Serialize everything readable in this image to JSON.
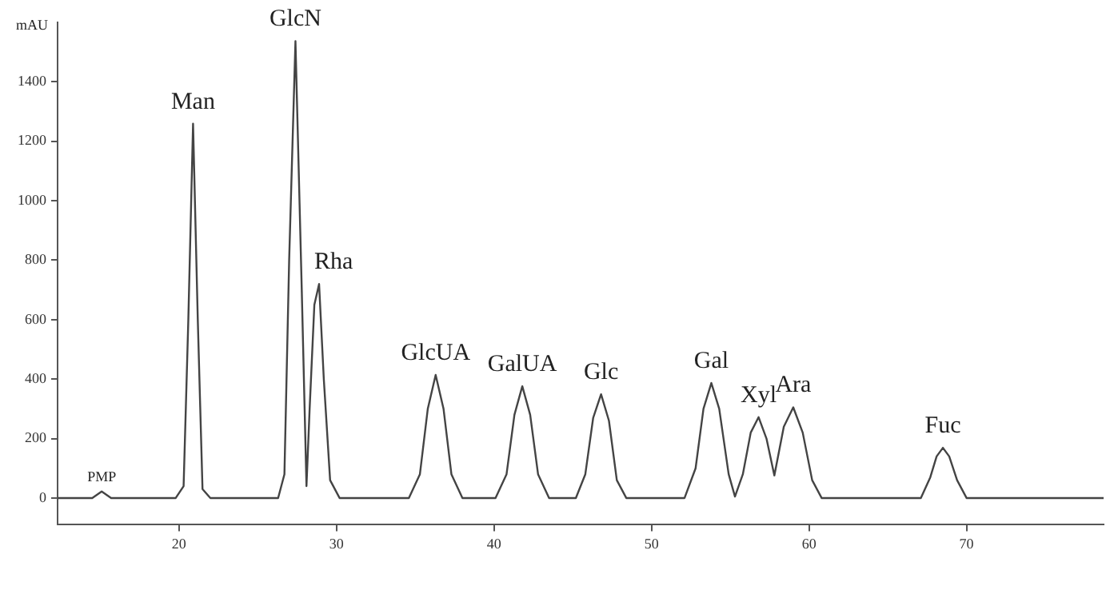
{
  "chart_data": {
    "type": "line",
    "ylabel": "mAU",
    "x": [
      12.3,
      14.5,
      15.1,
      15.7,
      19.8,
      20.3,
      20.6,
      20.9,
      21.2,
      21.5,
      22,
      26.3,
      26.7,
      27.0,
      27.4,
      27.8,
      28.1,
      28.3,
      28.6,
      28.9,
      29.2,
      29.6,
      30.2,
      34.6,
      35.3,
      35.8,
      36.3,
      36.8,
      37.3,
      38,
      40.1,
      40.8,
      41.3,
      41.8,
      42.3,
      42.8,
      43.5,
      45.2,
      45.8,
      46.3,
      46.8,
      47.3,
      47.8,
      48.4,
      52.1,
      52.8,
      53.3,
      53.8,
      54.3,
      54.9,
      55.3,
      55.8,
      56.3,
      56.8,
      57.3,
      57.8,
      58.4,
      59.0,
      59.6,
      60.2,
      60.8,
      67.1,
      67.7,
      68.1,
      68.5,
      68.9,
      69.4,
      70,
      78.7
    ],
    "series": [
      {
        "color": "#444444",
        "values": [
          0,
          0,
          22,
          0,
          0,
          40,
          600,
          1259,
          600,
          30,
          0,
          0,
          80,
          800,
          1537,
          700,
          40,
          300,
          650,
          720,
          400,
          60,
          0,
          0,
          80,
          300,
          414,
          300,
          80,
          0,
          0,
          80,
          280,
          376,
          280,
          80,
          0,
          0,
          80,
          270,
          349,
          260,
          60,
          0,
          0,
          100,
          300,
          387,
          300,
          80,
          5,
          80,
          220,
          272,
          200,
          76,
          240,
          305,
          220,
          60,
          0,
          0,
          70,
          140,
          169,
          140,
          60,
          0,
          0
        ]
      }
    ],
    "xlim": [
      12.3,
      78.7
    ],
    "xticks": [
      20,
      30,
      40,
      50,
      60,
      70
    ],
    "ylim": [
      -90,
      1600
    ],
    "yticks": [
      0,
      200,
      400,
      600,
      800,
      1000,
      1200,
      1400
    ],
    "grid": false,
    "legend": false,
    "marker": "none",
    "line_style": "solid",
    "annotations": [
      {
        "text": "PMP",
        "x": 15.1,
        "y": 22
      },
      {
        "text": "Man",
        "x": 20.9,
        "y": 1259
      },
      {
        "text": "GlcN",
        "x": 27.4,
        "y": 1537
      },
      {
        "text": "Rha",
        "x": 28.9,
        "y": 720
      },
      {
        "text": "GlcUA",
        "x": 36.3,
        "y": 414
      },
      {
        "text": "GalUA",
        "x": 41.8,
        "y": 376
      },
      {
        "text": "Glc",
        "x": 46.8,
        "y": 349
      },
      {
        "text": "Gal",
        "x": 53.8,
        "y": 387
      },
      {
        "text": "Xyl",
        "x": 56.8,
        "y": 272
      },
      {
        "text": "Ara",
        "x": 59.0,
        "y": 305
      },
      {
        "text": "Fuc",
        "x": 68.5,
        "y": 169
      }
    ]
  }
}
